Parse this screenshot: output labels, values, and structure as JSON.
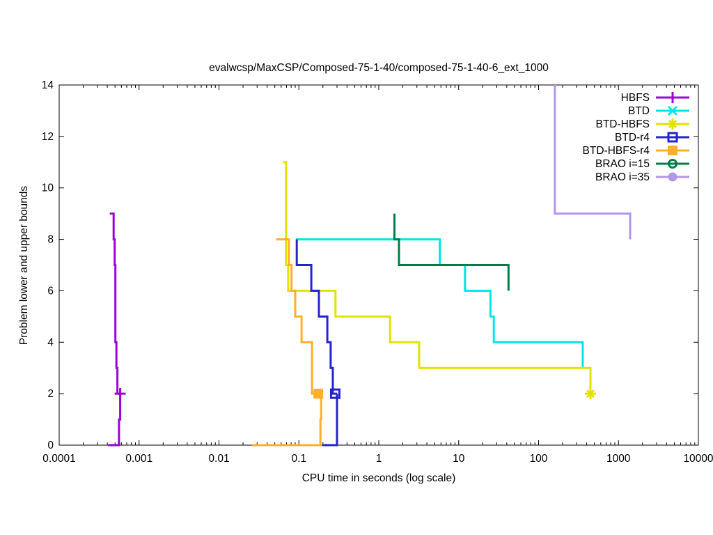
{
  "chart_data": {
    "type": "line",
    "title": "evalwcsp/MaxCSP/Composed-75-1-40/composed-75-1-40-6_ext_1000",
    "xlabel": "CPU time in seconds (log scale)",
    "ylabel": "Problem lower and upper bounds",
    "x_scale": "log",
    "xlim": [
      0.0001,
      10000
    ],
    "ylim": [
      0,
      14
    ],
    "x_ticks": [
      0.0001,
      0.001,
      0.01,
      0.1,
      1,
      10,
      100,
      1000,
      10000
    ],
    "x_tick_labels": [
      "0.0001",
      "0.001",
      "0.01",
      "0.1",
      "1",
      "10",
      "100",
      "1000",
      "10000"
    ],
    "y_ticks": [
      0,
      2,
      4,
      6,
      8,
      10,
      12,
      14
    ],
    "y_tick_labels": [
      "0",
      "2",
      "4",
      "6",
      "8",
      "10",
      "12",
      "14"
    ],
    "grid": false,
    "legend_position": "top-right-inside",
    "series": [
      {
        "name": "HBFS",
        "color": "#9d00d6",
        "marker": "plus",
        "paths": [
          [
            [
              0.00043,
              9
            ],
            [
              0.00048,
              9
            ],
            [
              0.00048,
              8
            ],
            [
              0.000495,
              8
            ],
            [
              0.000495,
              7
            ],
            [
              0.000505,
              7
            ],
            [
              0.000505,
              4
            ],
            [
              0.00052,
              4
            ],
            [
              0.00052,
              3
            ],
            [
              0.000535,
              3
            ],
            [
              0.000535,
              2
            ],
            [
              0.00058,
              2
            ]
          ],
          [
            [
              0.00041,
              0
            ],
            [
              0.00056,
              0
            ],
            [
              0.00056,
              1
            ],
            [
              0.00058,
              1
            ],
            [
              0.00058,
              2
            ]
          ]
        ],
        "marker_points": [
          [
            0.00058,
            2
          ]
        ]
      },
      {
        "name": "BTD",
        "color": "#00e5e5",
        "marker": "cross",
        "paths": [
          [
            [
              0.092,
              8
            ],
            [
              5.8,
              8
            ],
            [
              5.8,
              7
            ],
            [
              12,
              7
            ],
            [
              12,
              6
            ],
            [
              25,
              6
            ],
            [
              25,
              5
            ],
            [
              27.5,
              5
            ],
            [
              27.5,
              4
            ],
            [
              357,
              4
            ],
            [
              357,
              3
            ]
          ]
        ],
        "marker_points": []
      },
      {
        "name": "BTD-HBFS",
        "color": "#e2e200",
        "marker": "star",
        "paths": [
          [
            [
              0.063,
              11
            ],
            [
              0.069,
              11
            ],
            [
              0.069,
              7
            ],
            [
              0.0735,
              7
            ],
            [
              0.0735,
              6
            ],
            [
              0.287,
              6
            ],
            [
              0.287,
              5
            ],
            [
              1.38,
              5
            ],
            [
              1.38,
              4
            ],
            [
              3.2,
              4
            ],
            [
              3.2,
              3
            ],
            [
              446,
              3
            ],
            [
              446,
              2
            ]
          ]
        ],
        "marker_points": [
          [
            446,
            2
          ]
        ]
      },
      {
        "name": "BTD-r4",
        "color": "#2424cc",
        "marker": "open-square",
        "paths": [
          [
            [
              0.094,
              8
            ],
            [
              0.094,
              7
            ],
            [
              0.143,
              7
            ],
            [
              0.143,
              6
            ],
            [
              0.178,
              6
            ],
            [
              0.178,
              5
            ],
            [
              0.227,
              5
            ],
            [
              0.227,
              4
            ],
            [
              0.25,
              4
            ],
            [
              0.25,
              3
            ],
            [
              0.266,
              3
            ],
            [
              0.266,
              2
            ],
            [
              0.3,
              2
            ]
          ],
          [
            [
              0.197,
              0
            ],
            [
              0.3,
              0
            ],
            [
              0.3,
              2
            ]
          ]
        ],
        "marker_points": [
          [
            0.285,
            2
          ]
        ]
      },
      {
        "name": "BTD-HBFS-r4",
        "color": "#ffaf29",
        "marker": "filled-square",
        "paths": [
          [
            [
              0.052,
              8
            ],
            [
              0.075,
              8
            ],
            [
              0.075,
              7
            ],
            [
              0.081,
              7
            ],
            [
              0.081,
              6
            ],
            [
              0.09,
              6
            ],
            [
              0.09,
              5
            ],
            [
              0.108,
              5
            ],
            [
              0.108,
              4
            ],
            [
              0.146,
              4
            ],
            [
              0.146,
              2
            ],
            [
              0.19,
              2
            ]
          ],
          [
            [
              0.026,
              0
            ],
            [
              0.186,
              0
            ],
            [
              0.186,
              1
            ],
            [
              0.19,
              1
            ],
            [
              0.19,
              2
            ]
          ]
        ],
        "marker_points": [
          [
            0.175,
            2
          ]
        ]
      },
      {
        "name": "BRAO i=15",
        "color": "#007d46",
        "marker": "open-circle",
        "paths": [
          [
            [
              1.57,
              9
            ],
            [
              1.57,
              8
            ],
            [
              1.79,
              8
            ],
            [
              1.79,
              7
            ],
            [
              42,
              7
            ],
            [
              42,
              6
            ]
          ]
        ],
        "marker_points": []
      },
      {
        "name": "BRAO i=35",
        "color": "#b197e8",
        "marker": "filled-circle",
        "paths": [
          [
            [
              160,
              14
            ],
            [
              160,
              9
            ],
            [
              1400,
              9
            ],
            [
              1400,
              8
            ]
          ]
        ],
        "marker_points": []
      }
    ]
  }
}
